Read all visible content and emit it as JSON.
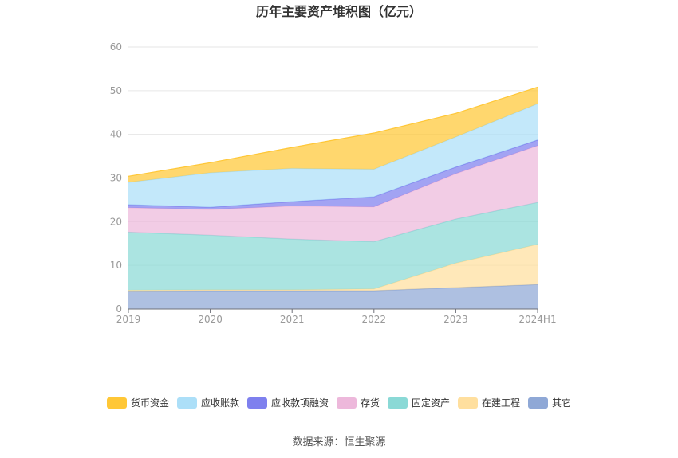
{
  "chart_data": {
    "type": "area",
    "stacked": true,
    "title": "历年主要资产堆积图（亿元）",
    "categories": [
      "2019",
      "2020",
      "2021",
      "2022",
      "2023",
      "2024H1"
    ],
    "ylim": [
      0,
      60
    ],
    "yticks": [
      "0",
      "10",
      "20",
      "30",
      "40",
      "50",
      "60"
    ],
    "grid": true,
    "legend_position": "bottom",
    "series": [
      {
        "name": "其它",
        "color": "#8fa8d6",
        "values": [
          4.1,
          4.2,
          4.2,
          4.2,
          4.9,
          5.6
        ]
      },
      {
        "name": "在建工程",
        "color": "#ffdf9e",
        "values": [
          0.2,
          0.2,
          0.2,
          0.4,
          5.6,
          9.2
        ]
      },
      {
        "name": "固定资产",
        "color": "#8ad9d6",
        "values": [
          13.3,
          12.5,
          11.6,
          10.8,
          10.1,
          9.6
        ]
      },
      {
        "name": "存货",
        "color": "#edb8db",
        "values": [
          5.6,
          5.9,
          7.6,
          8.0,
          10.4,
          13.0
        ]
      },
      {
        "name": "应收款项融资",
        "color": "#7e80ee",
        "values": [
          0.7,
          0.5,
          1.0,
          2.3,
          1.5,
          1.3
        ]
      },
      {
        "name": "应收账款",
        "color": "#acdff8",
        "values": [
          5.1,
          7.9,
          7.6,
          6.3,
          6.9,
          8.3
        ]
      },
      {
        "name": "货币资金",
        "color": "#ffc736",
        "values": [
          1.4,
          2.3,
          4.8,
          8.3,
          5.4,
          3.8
        ]
      }
    ]
  },
  "footer": {
    "source": "数据来源：恒生聚源"
  }
}
